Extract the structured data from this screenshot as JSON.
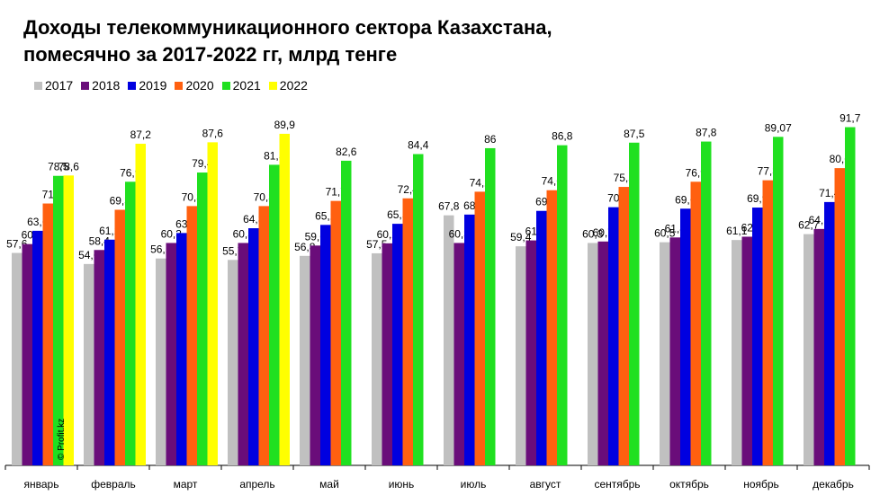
{
  "chart_data": {
    "type": "bar",
    "title": "Доходы телекоммуникационного сектора Казахстана,\nпомесячно за 2017-2022 гг, млрд тенге",
    "categories": [
      "январь",
      "февраль",
      "март",
      "апрель",
      "май",
      "июнь",
      "июль",
      "август",
      "сентябрь",
      "октябрь",
      "ноябрь",
      "декабрь"
    ],
    "series": [
      {
        "name": "2017",
        "color": "#c0c0c0",
        "values": [
          57.6,
          54.6,
          56.1,
          55.7,
          56.8,
          57.5,
          67.8,
          59.4,
          60.3,
          60.5,
          61.1,
          62.7
        ],
        "labels": [
          "57,6",
          "54,6",
          "56,1",
          "55,7",
          "56,8",
          "57,5",
          "67,8",
          "59,4",
          "60,3",
          "60,5",
          "61,1",
          "62,7"
        ]
      },
      {
        "name": "2018",
        "color": "#6a0d7a",
        "values": [
          60,
          58.4,
          60.3,
          60.3,
          59.6,
          60.2,
          60.3,
          61,
          60.7,
          61.8,
          62,
          64.1
        ],
        "labels": [
          "60",
          "58,4",
          "60,3",
          "60,3",
          "59,6",
          "60,2",
          "60,3",
          "61",
          "60,7",
          "61,8",
          "62",
          "64,1"
        ]
      },
      {
        "name": "2019",
        "color": "#0000e0",
        "values": [
          63.6,
          61.2,
          63,
          64.3,
          65.2,
          65.5,
          68,
          69,
          70,
          69.6,
          69.9,
          71.4
        ],
        "labels": [
          "63,6",
          "61,2",
          "63",
          "64,3",
          "65,2",
          "65,5",
          "68",
          "69",
          "70",
          "69,6",
          "69,9",
          "71,4"
        ]
      },
      {
        "name": "2020",
        "color": "#ff6010",
        "values": [
          71,
          69.3,
          70.3,
          70.3,
          71.7,
          72.4,
          74.2,
          74.6,
          75.5,
          76.9,
          77.3,
          80.6
        ],
        "labels": [
          "71",
          "69,3",
          "70,3",
          "70,3",
          "71,7",
          "72,4",
          "74,2",
          "74,6",
          "75,5",
          "76,9",
          "77,3",
          "80,6"
        ]
      },
      {
        "name": "2021",
        "color": "#20e020",
        "values": [
          78.5,
          76.9,
          79.4,
          81.5,
          82.6,
          84.4,
          86,
          86.8,
          87.5,
          87.8,
          89.07,
          91.7
        ],
        "labels": [
          "78,5",
          "76,9",
          "79,4",
          "81,5",
          "82,6",
          "84,4",
          "86",
          "86,8",
          "87,5",
          "87,8",
          "89,07",
          "91,7"
        ]
      },
      {
        "name": "2022",
        "color": "#ffff00",
        "values": [
          78.6,
          87.2,
          87.6,
          89.9,
          null,
          null,
          null,
          null,
          null,
          null,
          null,
          null
        ],
        "labels": [
          "78,6",
          "87,2",
          "87,6",
          "89,9",
          "",
          "",
          "",
          "",
          "",
          "",
          "",
          ""
        ]
      }
    ],
    "ylim": [
      0,
      95
    ],
    "grid": false,
    "legend": "top-left",
    "xlabel": "",
    "ylabel": ""
  },
  "watermark": "© Profit.kz"
}
